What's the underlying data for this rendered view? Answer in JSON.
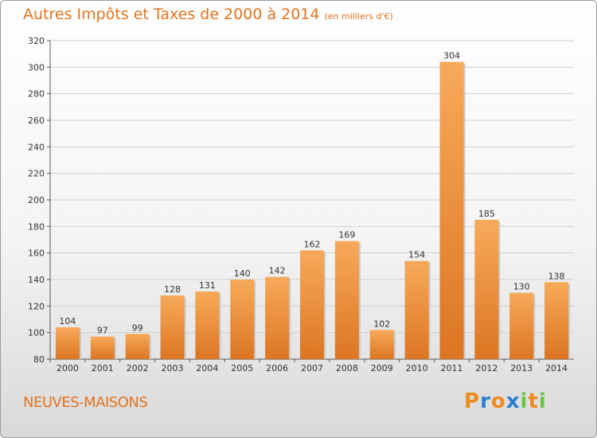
{
  "header": {
    "title": "Autres Impôts et Taxes de 2000 à 2014",
    "unit": "(en milliers d'€)"
  },
  "footer": {
    "city": "NEUVES-MAISONS",
    "logo": [
      "P",
      "r",
      "o",
      "x",
      "i",
      "t",
      "i"
    ]
  },
  "colors": {
    "title": "#e2731f",
    "bar_light": "#f7aa5a",
    "bar_dark": "#dc7622",
    "logo": [
      "#f08a1c",
      "#2c7fd0",
      "#f08a1c",
      "#2c7fd0",
      "#6cc24a",
      "#f08a1c",
      "#6cc24a"
    ]
  },
  "chart_data": {
    "type": "bar",
    "categories": [
      "2000",
      "2001",
      "2002",
      "2003",
      "2004",
      "2005",
      "2006",
      "2007",
      "2008",
      "2009",
      "2010",
      "2011",
      "2012",
      "2013",
      "2014"
    ],
    "values": [
      104,
      97,
      99,
      128,
      131,
      140,
      142,
      162,
      169,
      102,
      154,
      304,
      185,
      130,
      138
    ],
    "title": "Autres Impôts et Taxes de 2000 à 2014",
    "ylim": [
      80,
      320
    ],
    "yticks": [
      80,
      100,
      120,
      140,
      160,
      180,
      200,
      220,
      240,
      260,
      280,
      300,
      320
    ],
    "grid": true
  }
}
